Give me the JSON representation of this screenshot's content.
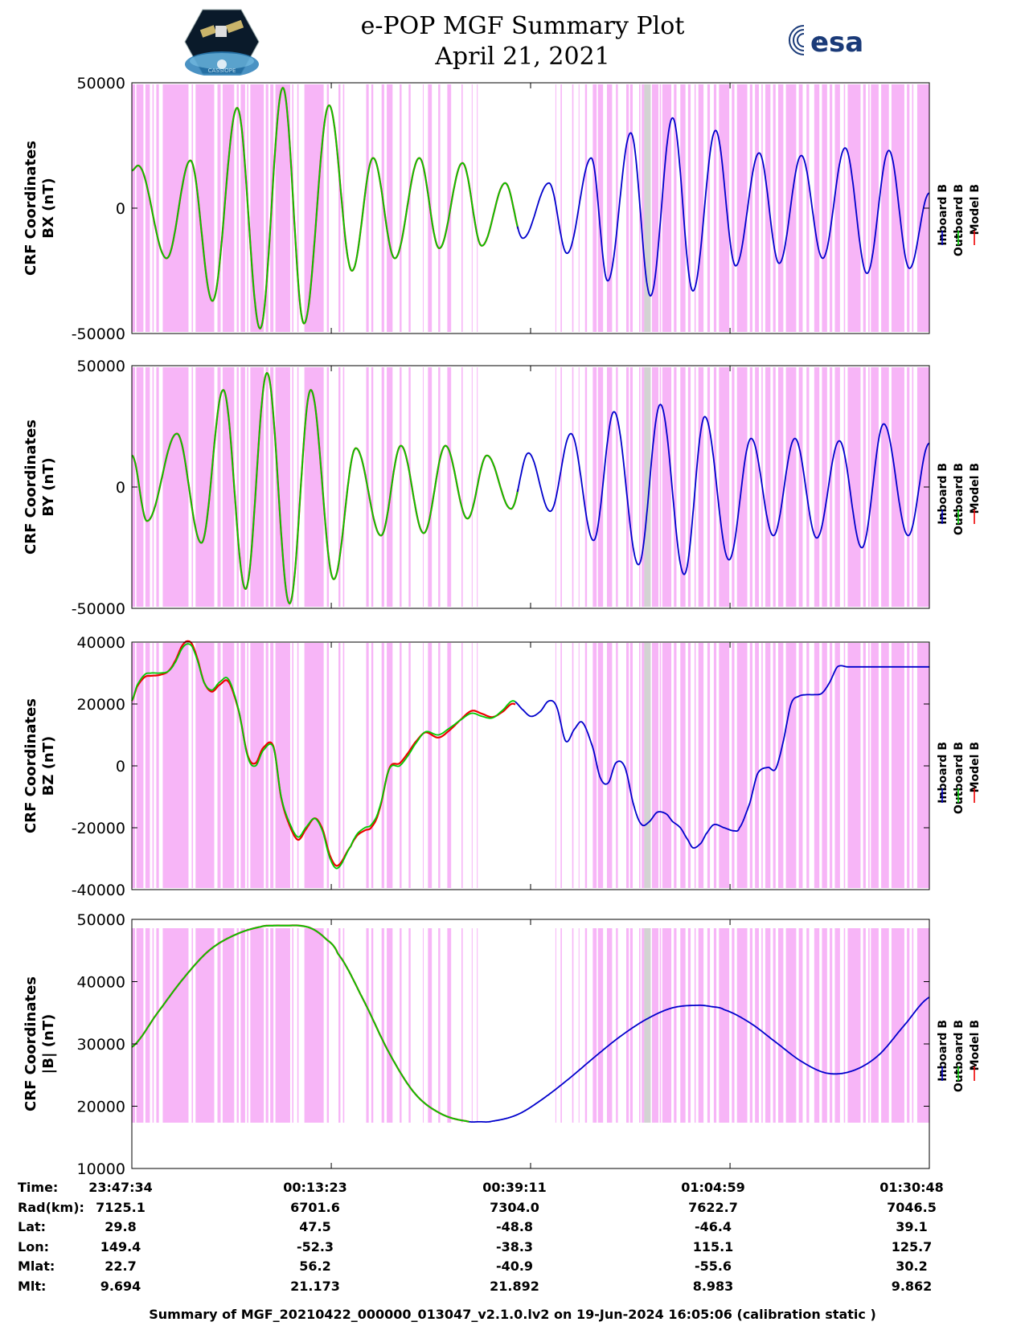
{
  "header": {
    "title": "e-POP MGF Summary Plot",
    "date": "April 21, 2021",
    "left_logo": "cassiope-logo",
    "left_logo_text": "CASSIOPE",
    "right_logo": "esa-logo",
    "right_logo_text": "esa"
  },
  "colors": {
    "inboard": "#0000cc",
    "outboard": "#00cc00",
    "model": "#ee0000",
    "shade": "#f7b5f7",
    "shade_gray": "#d3d3d3"
  },
  "legend": [
    "Inboard B",
    "Outboard B",
    "Model B"
  ],
  "chart_data": [
    {
      "type": "line",
      "id": "bx",
      "ylabel": [
        "CRF Coordinates",
        "BX (nT)"
      ],
      "ylim": [
        -50000,
        50000
      ],
      "yticks": [
        50000,
        0,
        -50000
      ],
      "ytick_labels": [
        "50000",
        "0",
        "-50000"
      ],
      "x_range_s": [
        0,
        6194
      ],
      "outboard_until_s": 3000,
      "series": {
        "extrema_t_s": [
          0,
          48,
          270,
          455,
          626,
          818,
          996,
          1173,
          1337,
          1532,
          1710,
          1874,
          2043,
          2233,
          2388,
          2568,
          2718,
          2900,
          3037,
          3240,
          3380,
          3568,
          3696,
          3875,
          4028,
          4200,
          4358,
          4534,
          4690,
          4872,
          5028,
          5200,
          5366,
          5540,
          5710,
          5880,
          6040,
          6194
        ],
        "extrema_v_nT": [
          15000,
          17000,
          -20000,
          19000,
          -37000,
          40000,
          -48000,
          48000,
          -46000,
          41000,
          -25000,
          20000,
          -20000,
          20000,
          -16000,
          18000,
          -15000,
          10000,
          -12000,
          10000,
          -18000,
          20000,
          -29000,
          30000,
          -35000,
          36000,
          -33000,
          31000,
          -23000,
          22000,
          -22000,
          21000,
          -20000,
          24000,
          -26000,
          23000,
          -24000,
          6000
        ]
      }
    },
    {
      "type": "line",
      "id": "by",
      "ylabel": [
        "CRF Coordinates",
        "BY (nT)"
      ],
      "ylim": [
        -50000,
        50000
      ],
      "yticks": [
        50000,
        0,
        -50000
      ],
      "ytick_labels": [
        "50000",
        "0",
        "-50000"
      ],
      "x_range_s": [
        0,
        6194
      ],
      "outboard_until_s": 3000,
      "series": {
        "extrema_t_s": [
          0,
          118,
          350,
          540,
          710,
          883,
          1050,
          1225,
          1390,
          1568,
          1740,
          1935,
          2090,
          2267,
          2436,
          2607,
          2758,
          2945,
          3080,
          3250,
          3410,
          3586,
          3745,
          3935,
          4105,
          4290,
          4450,
          4638,
          4810,
          4983,
          5150,
          5320,
          5495,
          5670,
          5840,
          6030,
          6194
        ],
        "extrema_v_nT": [
          13000,
          -14000,
          22000,
          -23000,
          40000,
          -42000,
          47000,
          -48000,
          40000,
          -38000,
          16000,
          -20000,
          17000,
          -19000,
          17000,
          -13000,
          13000,
          -9000,
          14000,
          -10000,
          22000,
          -22000,
          31000,
          -32000,
          34000,
          -36000,
          29000,
          -30000,
          20000,
          -20000,
          20000,
          -21000,
          19000,
          -25000,
          26000,
          -20000,
          18000
        ]
      }
    },
    {
      "type": "line",
      "id": "bz",
      "ylabel": [
        "CRF Coordinates",
        "BZ (nT)"
      ],
      "ylim": [
        -40000,
        40000
      ],
      "yticks": [
        40000,
        20000,
        0,
        -20000,
        -40000
      ],
      "ytick_labels": [
        "40000",
        "20000",
        "0",
        "-20000",
        "-40000"
      ],
      "x_range_s": [
        0,
        6194
      ],
      "outboard_until_s": 2980,
      "series": {
        "t_s": [
          0,
          40,
          100,
          150,
          220,
          280,
          330,
          400,
          460,
          510,
          560,
          620,
          680,
          750,
          830,
          900,
          960,
          1020,
          1100,
          1160,
          1220,
          1290,
          1350,
          1420,
          1480,
          1540,
          1600,
          1700,
          1750,
          1810,
          1860,
          1920,
          2000,
          2080,
          2140,
          2200,
          2280,
          2380,
          2460,
          2560,
          2640,
          2720,
          2800,
          2880,
          2960,
          3040,
          3100,
          3170,
          3240,
          3300,
          3370,
          3440,
          3500,
          3580,
          3640,
          3700,
          3760,
          3830,
          3900,
          3960,
          4020,
          4080,
          4150,
          4200,
          4260,
          4320,
          4360,
          4420,
          4460,
          4520,
          4600,
          4680,
          4720,
          4800,
          4860,
          4940,
          5000,
          5060,
          5120,
          5180,
          5240,
          5300,
          5360,
          5420,
          5480,
          5560,
          5640,
          5700,
          5780,
          5840,
          5900,
          5980,
          6060,
          6130,
          6194
        ],
        "v_nT": [
          21000,
          26000,
          29500,
          30000,
          30000,
          30500,
          33000,
          38500,
          39000,
          34000,
          27000,
          24500,
          27000,
          28000,
          18000,
          3000,
          0,
          5000,
          6000,
          -10000,
          -18000,
          -23000,
          -20000,
          -17000,
          -21000,
          -30000,
          -33000,
          -26000,
          -22000,
          -20000,
          -19000,
          -14000,
          -1000,
          0,
          3000,
          7000,
          11000,
          10000,
          12000,
          15000,
          17000,
          16000,
          15500,
          18000,
          21000,
          18000,
          16000,
          17500,
          21000,
          19000,
          8000,
          12000,
          14000,
          6000,
          -4000,
          -5500,
          1000,
          -500,
          -13000,
          -19000,
          -18000,
          -15000,
          -15500,
          -18000,
          -20000,
          -24000,
          -26500,
          -25000,
          -22000,
          -19000,
          -20000,
          -21000,
          -20000,
          -12000,
          -2500,
          -500,
          -1000,
          8000,
          20000,
          22500,
          23000,
          23000,
          23500,
          27000,
          32000,
          32000,
          32000,
          32000,
          32000,
          32000,
          32000,
          32000,
          32000,
          32000,
          32000
        ]
      }
    },
    {
      "type": "line",
      "id": "bmag",
      "ylabel": [
        "CRF Coordinates",
        "|B| (nT)"
      ],
      "ylim": [
        10000,
        50000
      ],
      "yticks": [
        50000,
        40000,
        30000,
        20000,
        10000
      ],
      "ytick_labels": [
        "50000",
        "40000",
        "30000",
        "20000",
        "10000"
      ],
      "x_range_s": [
        0,
        6194
      ],
      "outboard_until_s": 2620,
      "series": {
        "t_s": [
          0,
          200,
          400,
          600,
          800,
          1000,
          1100,
          1200,
          1300,
          1400,
          1500,
          1600,
          1800,
          2000,
          2200,
          2400,
          2600,
          2700,
          2800,
          3000,
          3200,
          3400,
          3600,
          3800,
          4000,
          4200,
          4400,
          4500,
          4600,
          4800,
          5000,
          5200,
          5400,
          5600,
          5800,
          6000,
          6194
        ],
        "v_nT": [
          29500,
          35000,
          40500,
          45000,
          47500,
          48800,
          49000,
          49000,
          49000,
          48500,
          47000,
          44500,
          37000,
          28500,
          22000,
          18800,
          17600,
          17500,
          17600,
          18700,
          21300,
          24500,
          28000,
          31300,
          34000,
          35800,
          36200,
          36000,
          35500,
          33400,
          30300,
          27200,
          25300,
          25700,
          28200,
          33000,
          37500
        ]
      }
    }
  ],
  "shading": {
    "pink_intervals_s": [
      [
        0,
        25
      ],
      [
        35,
        90
      ],
      [
        105,
        140
      ],
      [
        160,
        170
      ],
      [
        190,
        210
      ],
      [
        240,
        440
      ],
      [
        465,
        475
      ],
      [
        495,
        640
      ],
      [
        665,
        690
      ],
      [
        705,
        795
      ],
      [
        815,
        830
      ],
      [
        845,
        880
      ],
      [
        895,
        905
      ],
      [
        920,
        1025
      ],
      [
        1040,
        1060
      ],
      [
        1075,
        1100
      ],
      [
        1115,
        1230
      ],
      [
        1245,
        1255
      ],
      [
        1285,
        1295
      ],
      [
        1340,
        1490
      ],
      [
        1515,
        1530
      ],
      [
        1605,
        1620
      ],
      [
        1640,
        1650
      ],
      [
        1820,
        1840
      ],
      [
        1860,
        1875
      ],
      [
        1940,
        1960
      ],
      [
        1980,
        2025
      ],
      [
        2080,
        2095
      ],
      [
        2150,
        2165
      ],
      [
        2260,
        2265
      ],
      [
        2300,
        2330
      ],
      [
        2380,
        2395
      ],
      [
        2450,
        2480
      ],
      [
        2560,
        2570
      ],
      [
        2640,
        2645
      ],
      [
        2680,
        2685
      ],
      [
        3290,
        3295
      ],
      [
        3330,
        3340
      ],
      [
        3420,
        3430
      ],
      [
        3470,
        3475
      ],
      [
        3520,
        3535
      ],
      [
        3580,
        3610
      ],
      [
        3620,
        3660
      ],
      [
        3690,
        3730
      ],
      [
        3760,
        3775
      ],
      [
        3840,
        3860
      ],
      [
        3870,
        3890
      ],
      [
        3940,
        3950
      ],
      [
        3960,
        3980
      ],
      [
        4000,
        4020
      ],
      [
        4040,
        4090
      ],
      [
        4100,
        4110
      ],
      [
        4120,
        4190
      ],
      [
        4210,
        4230
      ],
      [
        4260,
        4300
      ],
      [
        4320,
        4340
      ],
      [
        4370,
        4380
      ],
      [
        4400,
        4440
      ],
      [
        4470,
        4490
      ],
      [
        4520,
        4540
      ],
      [
        4560,
        4640
      ],
      [
        4660,
        4680
      ],
      [
        4700,
        4780
      ],
      [
        4800,
        4820
      ],
      [
        4840,
        4870
      ],
      [
        4890,
        4900
      ],
      [
        4920,
        4960
      ],
      [
        4980,
        5000
      ],
      [
        5020,
        5060
      ],
      [
        5080,
        5160
      ],
      [
        5180,
        5210
      ],
      [
        5240,
        5260
      ],
      [
        5300,
        5340
      ],
      [
        5360,
        5400
      ],
      [
        5420,
        5440
      ],
      [
        5460,
        5500
      ],
      [
        5530,
        5540
      ],
      [
        5560,
        5660
      ],
      [
        5680,
        5700
      ],
      [
        5720,
        5730
      ],
      [
        5740,
        5800
      ],
      [
        5820,
        5880
      ],
      [
        5900,
        6000
      ],
      [
        6020,
        6040
      ],
      [
        6060,
        6070
      ],
      [
        6100,
        6194
      ]
    ],
    "gray_intervals_s": [
      [
        3980,
        4030
      ]
    ]
  },
  "x_axis": {
    "tick_s": [
      0,
      1549,
      3097,
      4646,
      6194
    ]
  },
  "info_table": {
    "labels": [
      "Time:",
      "Rad(km):",
      "Lat:",
      "Lon:",
      "Mlat:",
      "Mlt:"
    ],
    "columns": [
      [
        "23:47:34",
        "7125.1",
        "29.8",
        "149.4",
        "22.7",
        "9.694"
      ],
      [
        "00:13:23",
        "6701.6",
        "47.5",
        "-52.3",
        "56.2",
        "21.173"
      ],
      [
        "00:39:11",
        "7304.0",
        "-48.8",
        "-38.3",
        "-40.9",
        "21.892"
      ],
      [
        "01:04:59",
        "7622.7",
        "-46.4",
        "115.1",
        "-55.6",
        "8.983"
      ],
      [
        "01:30:48",
        "7046.5",
        "39.1",
        "125.7",
        "30.2",
        "9.862"
      ]
    ]
  },
  "footer": "Summary of MGF_20210422_000000_013047_v2.1.0.lv2 on 19-Jun-2024 16:05:06 (calibration static )"
}
